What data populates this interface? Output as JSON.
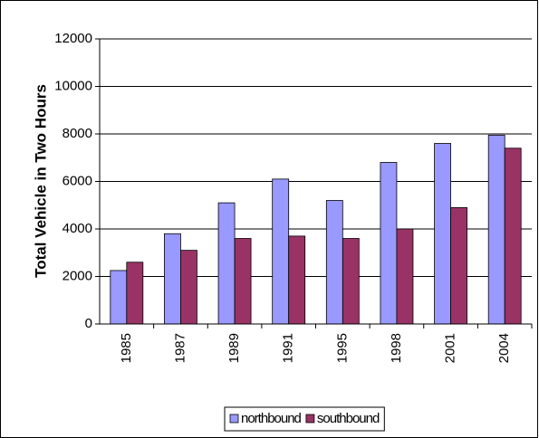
{
  "chart_data": {
    "type": "bar",
    "y_axis_label": "Total Vehicle in Two Hours",
    "categories": [
      "1985",
      "1987",
      "1989",
      "1991",
      "1995",
      "1998",
      "2001",
      "2004"
    ],
    "series": [
      {
        "name": "northbound",
        "color": "#9999ff",
        "values": [
          2250,
          3800,
          5100,
          6100,
          5200,
          6800,
          7600,
          7950
        ]
      },
      {
        "name": "southbound",
        "color": "#993366",
        "values": [
          2600,
          3100,
          3600,
          3700,
          3600,
          4000,
          4900,
          7400
        ]
      }
    ],
    "ylim": [
      0,
      12000
    ],
    "yticks": [
      0,
      2000,
      4000,
      6000,
      8000,
      10000,
      12000
    ],
    "grid": true,
    "legend": "bottom"
  }
}
